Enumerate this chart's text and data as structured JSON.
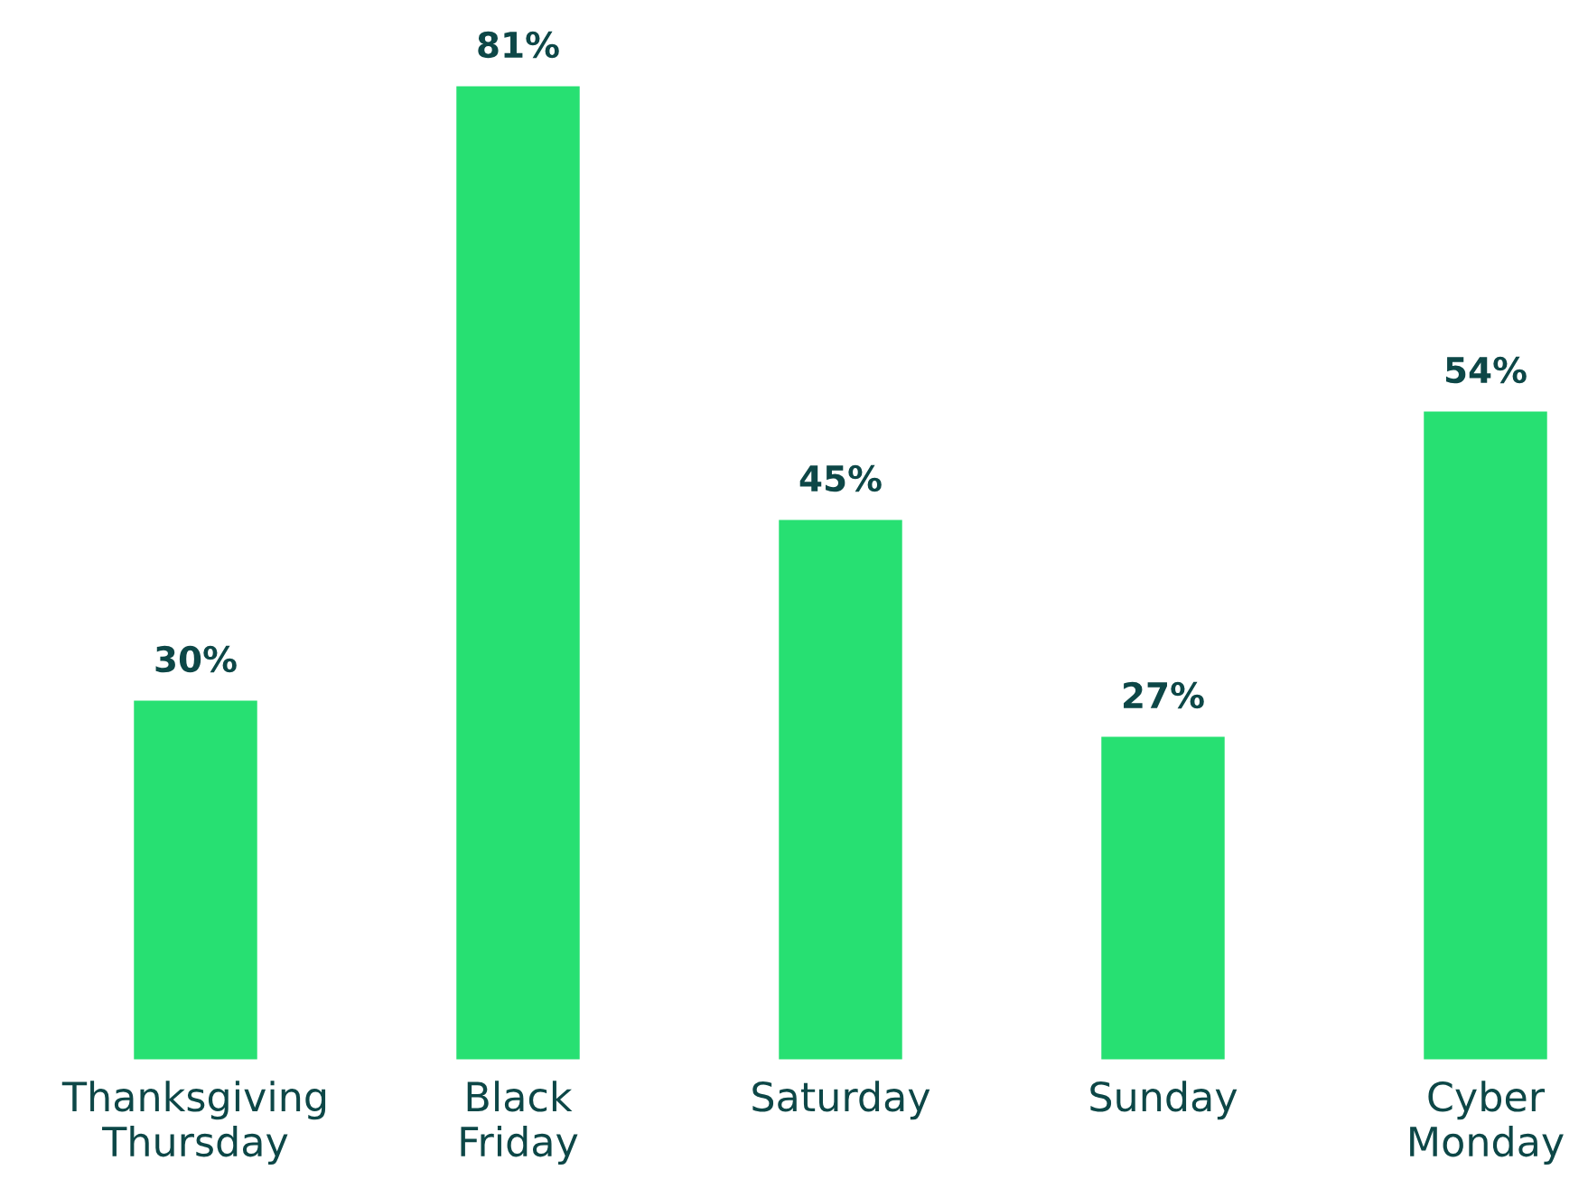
{
  "chart_data": {
    "type": "bar",
    "categories": [
      "Thanksgiving\nThursday",
      "Black\nFriday",
      "Saturday",
      "Sunday",
      "Cyber\nMonday"
    ],
    "values": [
      30,
      81,
      45,
      27,
      54
    ],
    "value_labels": [
      "30%",
      "81%",
      "45%",
      "27%",
      "54%"
    ],
    "color": "#27e072",
    "grid": false,
    "legend": false
  }
}
